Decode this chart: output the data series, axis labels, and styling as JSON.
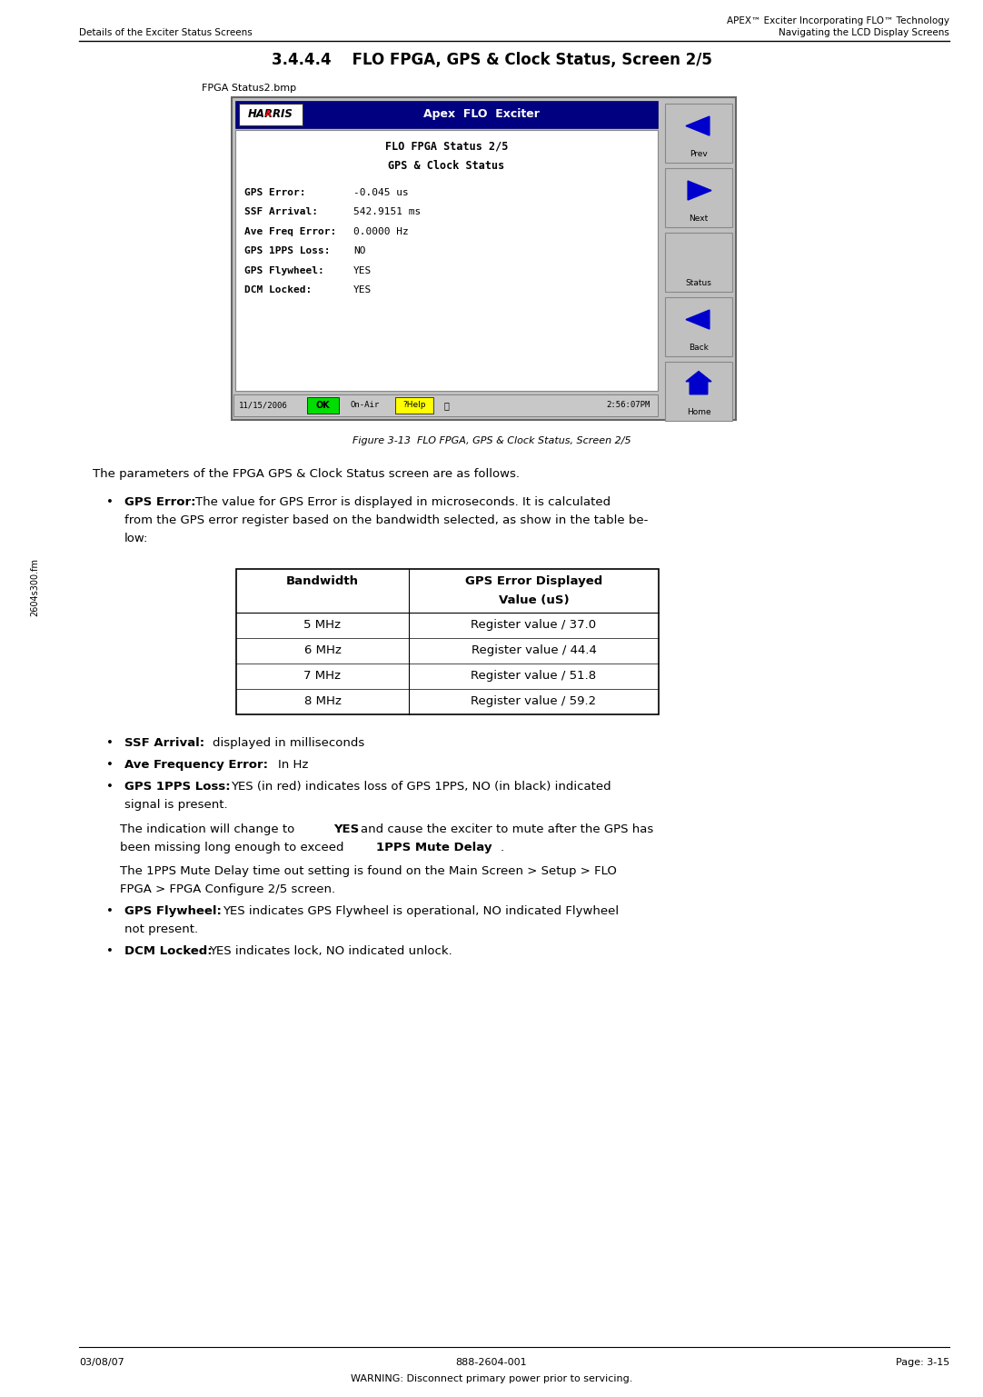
{
  "page_width": 10.82,
  "page_height": 15.37,
  "bg_color": "#ffffff",
  "header_left": "Details of the Exciter Status Screens",
  "header_right_top": "APEX™ Exciter Incorporating FLO™ Technology",
  "header_right_bot": "Navigating the LCD Display Screens",
  "section_title": "3.4.4.4    FLO FPGA, GPS & Clock Status, Screen 2/5",
  "figure_label": "FPGA Status2.bmp",
  "figure_caption": "Figure 3-13  FLO FPGA, GPS & Clock Status, Screen 2/5",
  "sidebar_text": "2604s300.fm",
  "footer_left": "03/08/07",
  "footer_center": "888-2604-001",
  "footer_warning": "WARNING: Disconnect primary power prior to servicing.",
  "footer_right": "Page: 3-15",
  "body_intro": "The parameters of the FPGA GPS & Clock Status screen are as follows.",
  "table_headers": [
    "Bandwidth",
    "GPS Error Displayed\nValue (uS)"
  ],
  "table_rows": [
    [
      "5 MHz",
      "Register value / 37.0"
    ],
    [
      "6 MHz",
      "Register value / 44.4"
    ],
    [
      "7 MHz",
      "Register value / 51.8"
    ],
    [
      "8 MHz",
      "Register value / 59.2"
    ]
  ],
  "lcd": {
    "header_bg": "#000080",
    "header_text": "Apex  FLO  Exciter",
    "harris_box_bg": "#ffffff",
    "harris_text": "HARRIS",
    "content_bg": "#ffffff",
    "outer_bg": "#c0c0c0",
    "title1": "FLO FPGA Status 2/5",
    "title2": "GPS & Clock Status",
    "fields": [
      [
        "GPS Error:",
        "-0.045 us"
      ],
      [
        "SSF Arrival:",
        "542.9151 ms"
      ],
      [
        "Ave Freq Error:",
        "0.0000 Hz"
      ],
      [
        "GPS 1PPS Loss:",
        "NO"
      ],
      [
        "GPS Flywheel:",
        "YES"
      ],
      [
        "DCM Locked:",
        "YES"
      ]
    ],
    "btn_bg": "#c0c0c0",
    "btn_border": "#888888",
    "btn_arrow_color": "#0000cc",
    "buttons": [
      "Prev",
      "Next",
      "Status",
      "Back",
      "Home"
    ],
    "status_date": "11/15/2006",
    "status_ok_bg": "#00dd00",
    "status_ok": "OK",
    "status_onair": "On-Air",
    "status_help_bg": "#ffff00",
    "status_help": "?Help",
    "status_time": "2:56:07PM"
  }
}
